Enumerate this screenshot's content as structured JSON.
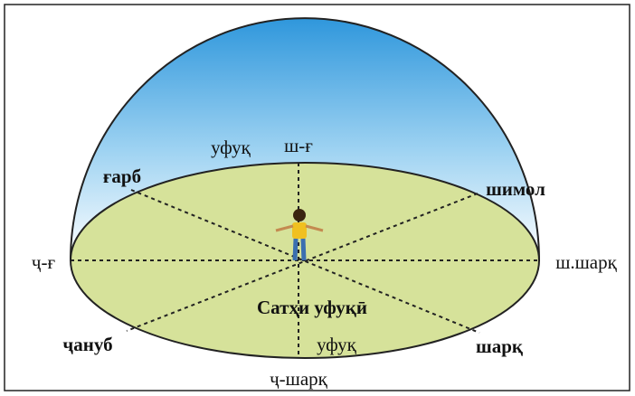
{
  "labels": {
    "horizon_top": "уфуқ",
    "north_west": "ш-ғ",
    "west": "ғарб",
    "north": "шимол",
    "south_west": "ҷ-ғ",
    "north_east": "ш.шарқ",
    "plane": "Сатҳи уфуқӣ",
    "south": "ҷануб",
    "horizon_bottom": "уфуқ",
    "east": "шарқ",
    "south_east": "ҷ-шарқ"
  }
}
